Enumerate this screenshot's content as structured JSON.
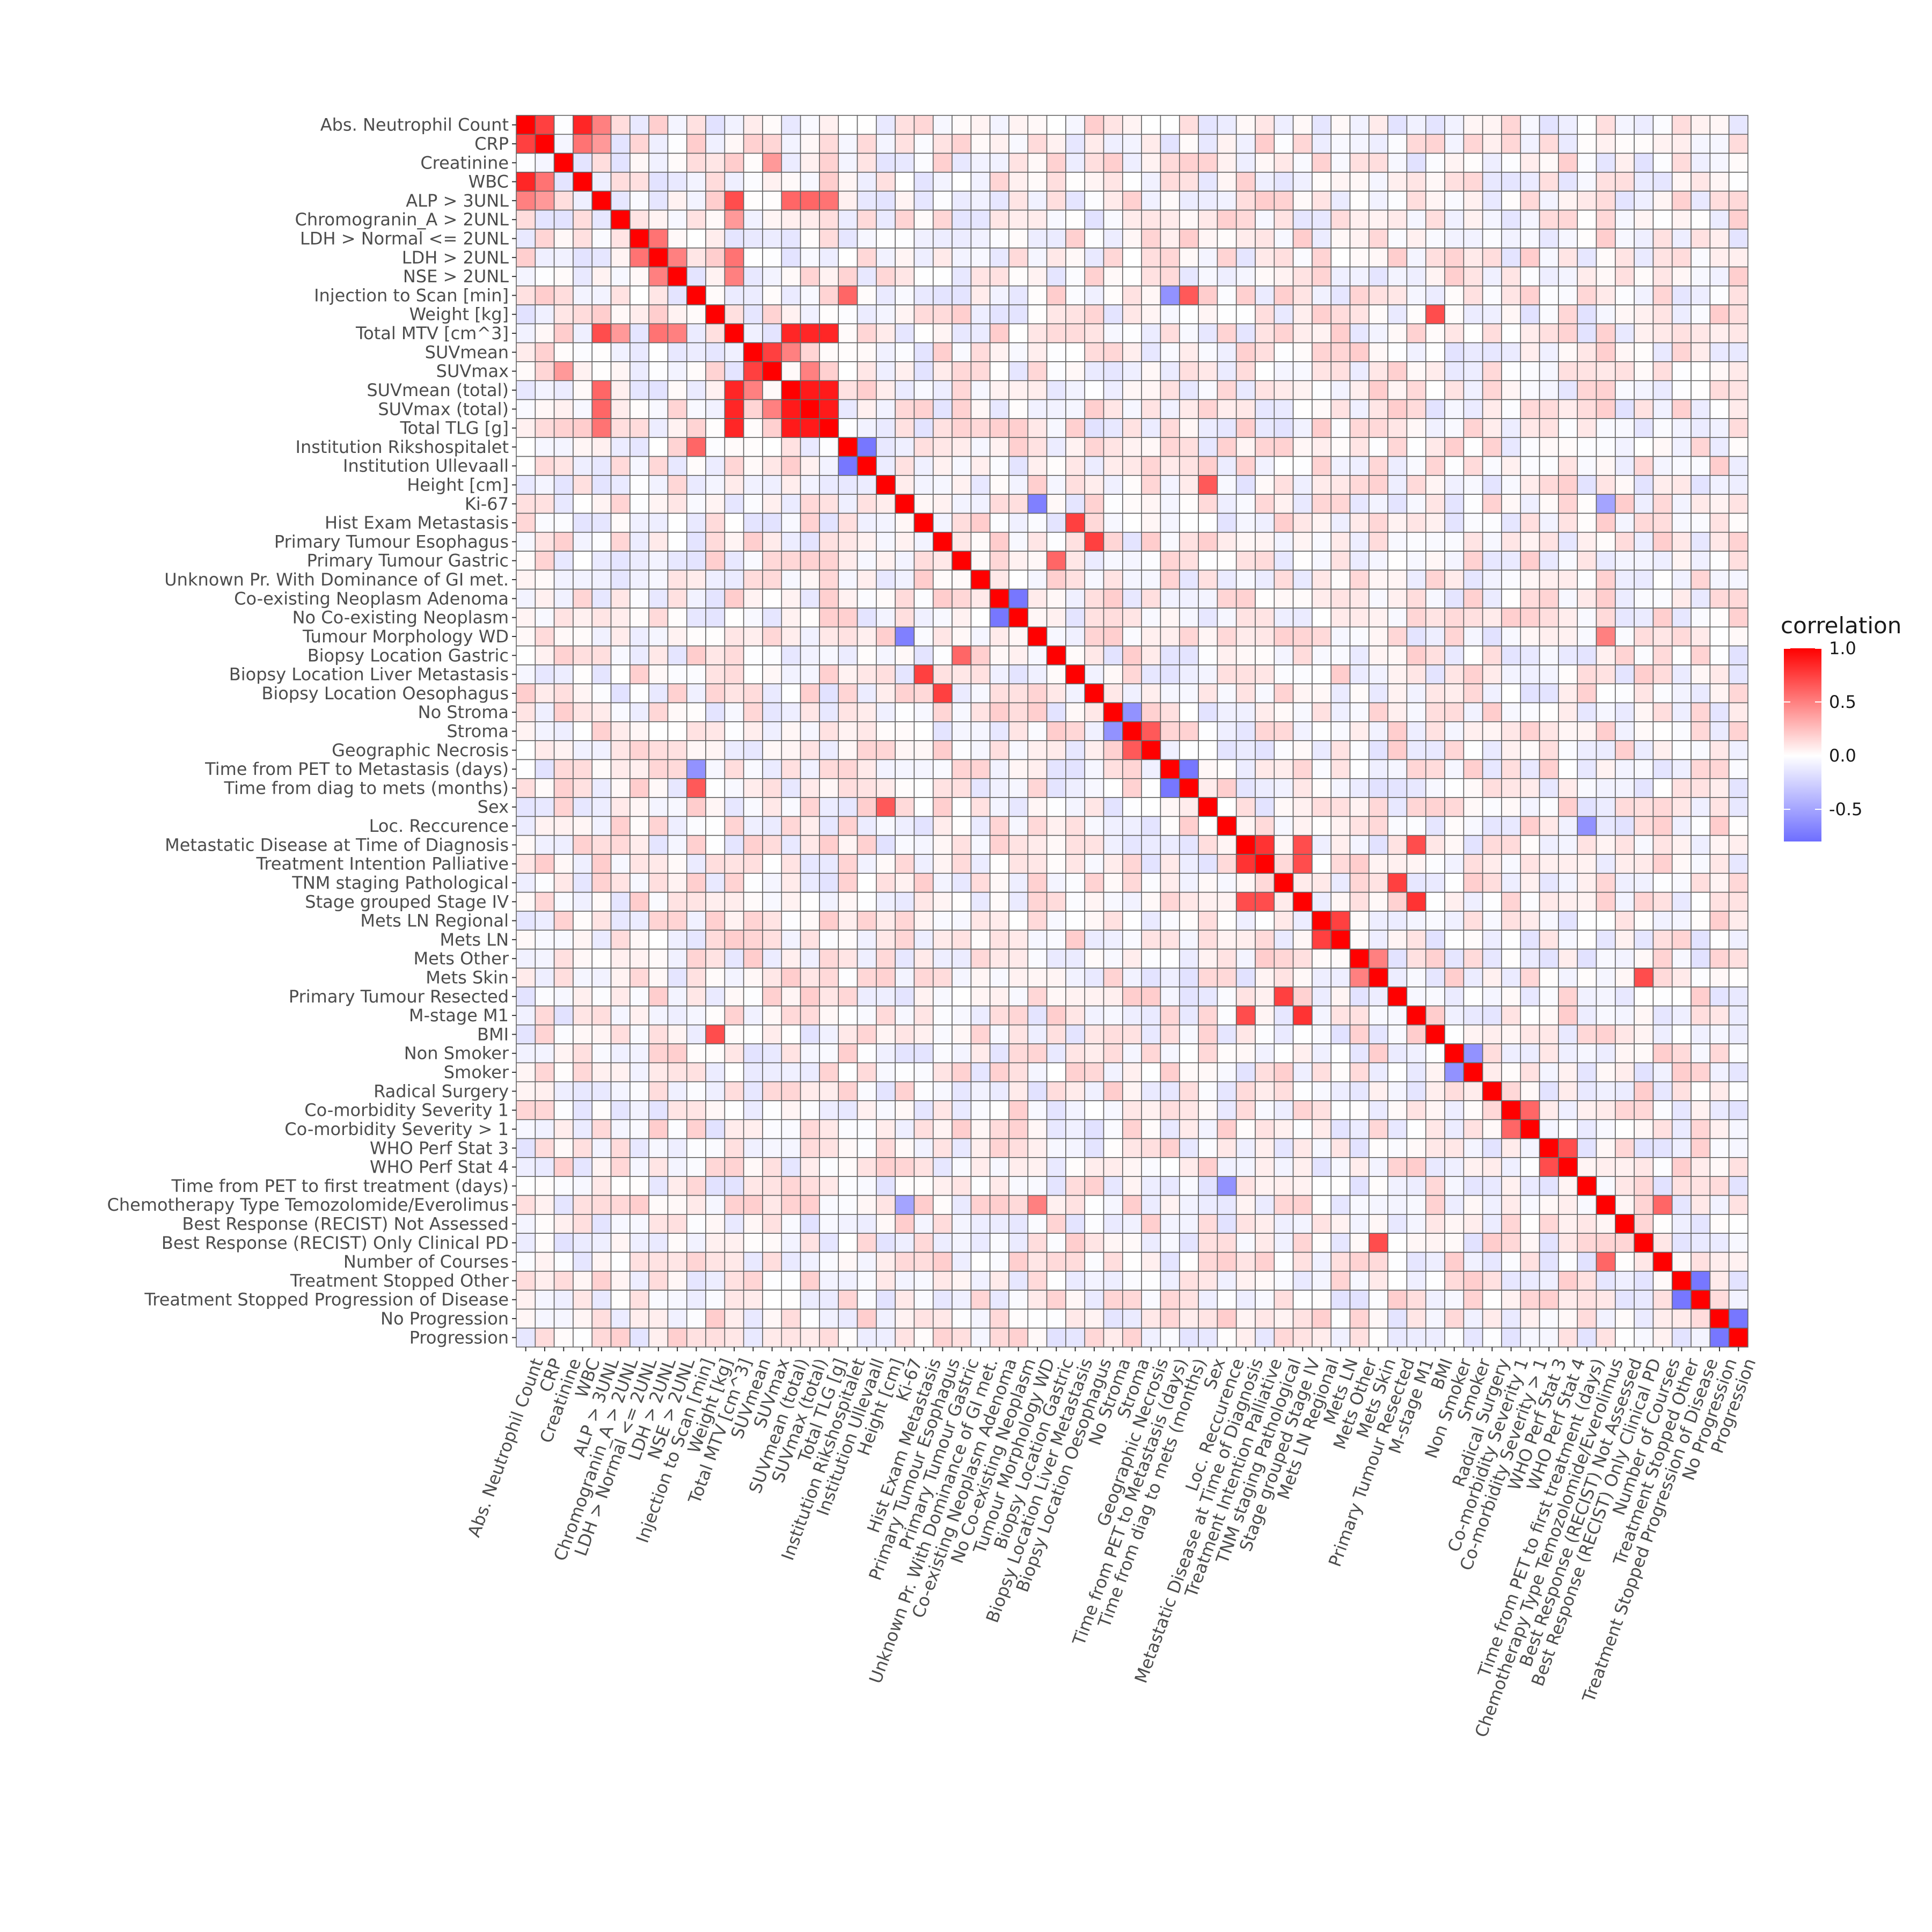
{
  "chart_data": {
    "type": "heatmap",
    "title": "",
    "xlabel": "",
    "ylabel": "",
    "variables": [
      "Abs.  Neutrophil Count",
      "CRP",
      "Creatinine",
      "WBC",
      "ALP > 3UNL",
      "Chromogranin_A > 2UNL",
      "LDH > Normal  <= 2UNL",
      "LDH > 2UNL",
      "NSE > 2UNL",
      "Injection to Scan [min]",
      "Weight [kg]",
      "Total MTV [cm^3]",
      "SUVmean",
      "SUVmax",
      "SUVmean (total)",
      "SUVmax (total)",
      "Total TLG [g]",
      "Institution Rikshospitalet",
      "Institution Ullevaall",
      "Height [cm]",
      "Ki-67",
      "Hist Exam Metastasis",
      "Primary Tumour Esophagus",
      "Primary Tumour Gastric",
      "Unknown Pr. With Dominance of GI met.",
      "Co-existing Neoplasm Adenoma",
      "No Co-existing Neoplasm",
      "Tumour Morphology WD",
      "Biopsy Location Gastric",
      "Biopsy Location Liver Metastasis",
      "Biopsy Location  Oesophagus",
      "No Stroma",
      "Stroma",
      "Geographic Necrosis",
      "Time from PET to Metastasis (days)",
      "Time from diag to mets  (months)",
      "Sex",
      "Loc. Reccurence",
      "Metastatic Disease at Time of Diagnosis",
      "Treatment Intention Palliative",
      "TNM staging Pathological",
      "Stage grouped Stage IV",
      "Mets LN Regional",
      "Mets LN",
      "Mets Other",
      "Mets Skin",
      "Primary Tumour Resected",
      "M-stage M1",
      "BMI",
      "Non Smoker",
      "Smoker",
      "Radical Surgery",
      "Co-morbidity Severity 1",
      "Co-morbidity Severity  > 1",
      "WHO Perf Stat 3",
      "WHO Perf Stat 4",
      "Time from PET to first treatment  (days)",
      "Chemotherapy Type Temozolomide/Everolimus",
      "Best Response  (RECIST) Not Assessed",
      "Best Response  (RECIST) Only Clinical PD",
      "Number of Courses",
      "Treatment Stopped Other",
      "Treatment Stopped Progression of Disease",
      "No Progression",
      "Progression"
    ],
    "value_range": [
      -0.8,
      1.0
    ],
    "strong_correlations": [
      {
        "a": 0,
        "b": 1,
        "r": 0.75
      },
      {
        "a": 0,
        "b": 3,
        "r": 0.85
      },
      {
        "a": 1,
        "b": 3,
        "r": 0.55
      },
      {
        "a": 0,
        "b": 4,
        "r": 0.5
      },
      {
        "a": 1,
        "b": 4,
        "r": 0.4
      },
      {
        "a": 4,
        "b": 11,
        "r": 0.7
      },
      {
        "a": 4,
        "b": 14,
        "r": 0.6
      },
      {
        "a": 4,
        "b": 15,
        "r": 0.6
      },
      {
        "a": 4,
        "b": 16,
        "r": 0.55
      },
      {
        "a": 6,
        "b": 7,
        "r": 0.55
      },
      {
        "a": 7,
        "b": 8,
        "r": 0.5
      },
      {
        "a": 7,
        "b": 11,
        "r": 0.55
      },
      {
        "a": 8,
        "b": 11,
        "r": 0.5
      },
      {
        "a": 5,
        "b": 11,
        "r": 0.4
      },
      {
        "a": 11,
        "b": 14,
        "r": 0.85
      },
      {
        "a": 11,
        "b": 15,
        "r": 0.85
      },
      {
        "a": 11,
        "b": 16,
        "r": 0.85
      },
      {
        "a": 14,
        "b": 15,
        "r": 0.9
      },
      {
        "a": 14,
        "b": 16,
        "r": 0.9
      },
      {
        "a": 15,
        "b": 16,
        "r": 0.9
      },
      {
        "a": 12,
        "b": 13,
        "r": 0.75
      },
      {
        "a": 12,
        "b": 14,
        "r": 0.5
      },
      {
        "a": 13,
        "b": 15,
        "r": 0.5
      },
      {
        "a": 2,
        "b": 13,
        "r": 0.4
      },
      {
        "a": 9,
        "b": 17,
        "r": 0.6
      },
      {
        "a": 9,
        "b": 34,
        "r": -0.6
      },
      {
        "a": 9,
        "b": 35,
        "r": 0.65
      },
      {
        "a": 17,
        "b": 18,
        "r": -0.75
      },
      {
        "a": 10,
        "b": 48,
        "r": 0.7
      },
      {
        "a": 19,
        "b": 36,
        "r": 0.65
      },
      {
        "a": 20,
        "b": 27,
        "r": -0.7
      },
      {
        "a": 20,
        "b": 57,
        "r": -0.5
      },
      {
        "a": 21,
        "b": 29,
        "r": 0.75
      },
      {
        "a": 22,
        "b": 30,
        "r": 0.75
      },
      {
        "a": 23,
        "b": 28,
        "r": 0.6
      },
      {
        "a": 25,
        "b": 26,
        "r": -0.75
      },
      {
        "a": 27,
        "b": 57,
        "r": 0.5
      },
      {
        "a": 31,
        "b": 32,
        "r": -0.6
      },
      {
        "a": 32,
        "b": 33,
        "r": 0.65
      },
      {
        "a": 34,
        "b": 35,
        "r": -0.75
      },
      {
        "a": 37,
        "b": 56,
        "r": -0.6
      },
      {
        "a": 38,
        "b": 39,
        "r": 0.8
      },
      {
        "a": 38,
        "b": 41,
        "r": 0.7
      },
      {
        "a": 39,
        "b": 41,
        "r": 0.7
      },
      {
        "a": 38,
        "b": 47,
        "r": 0.7
      },
      {
        "a": 41,
        "b": 47,
        "r": 0.8
      },
      {
        "a": 40,
        "b": 46,
        "r": 0.75
      },
      {
        "a": 42,
        "b": 43,
        "r": 0.75
      },
      {
        "a": 44,
        "b": 45,
        "r": 0.5
      },
      {
        "a": 45,
        "b": 59,
        "r": 0.7
      },
      {
        "a": 49,
        "b": 50,
        "r": -0.6
      },
      {
        "a": 52,
        "b": 53,
        "r": 0.6
      },
      {
        "a": 54,
        "b": 55,
        "r": 0.7
      },
      {
        "a": 57,
        "b": 60,
        "r": 0.6
      },
      {
        "a": 61,
        "b": 62,
        "r": -0.75
      },
      {
        "a": 63,
        "b": 64,
        "r": -0.75
      }
    ],
    "legend": {
      "title": "correlation",
      "ticks": [
        "1.0",
        "0.5",
        "0.0",
        "-0.5"
      ],
      "tick_values": [
        1.0,
        0.5,
        0.0,
        -0.5
      ],
      "low_color": "#6E6EFF",
      "mid_color": "#FFFFFF",
      "high_color": "#FF0000",
      "placement": "right"
    },
    "grid_line_color": "#666666"
  }
}
